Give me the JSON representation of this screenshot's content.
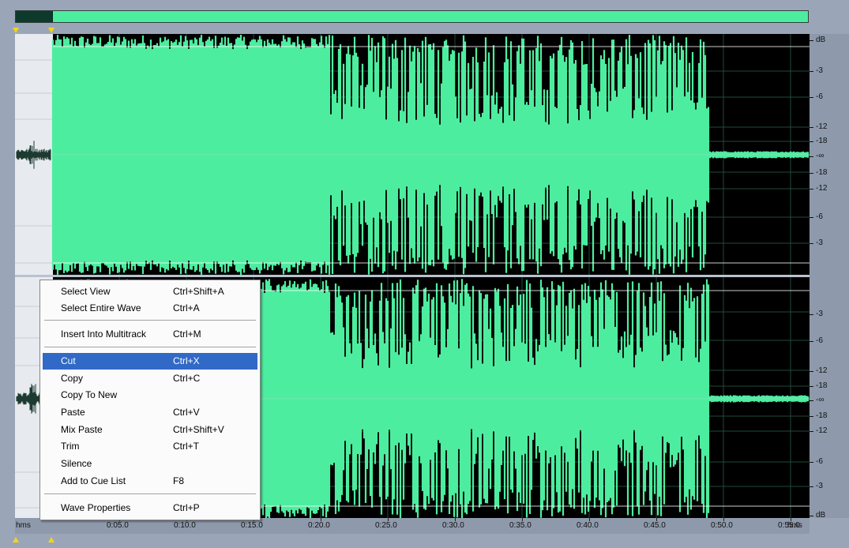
{
  "colors": {
    "waveform": "#4ded9f",
    "background": "#000000",
    "ruler": "#8e9aac",
    "highlight": "#3169c6",
    "marker": "#f2d51c"
  },
  "db_ruler": {
    "unit": "dB",
    "top_channel": [
      "dB",
      "-3",
      "-6",
      "-12",
      "-18",
      "-∞",
      "-18",
      "-12",
      "-6",
      "-3"
    ],
    "bottom_channel": [
      "-3",
      "-6",
      "-12",
      "-18",
      "-∞",
      "-18",
      "-12",
      "-6",
      "-3",
      "dB"
    ]
  },
  "time_ruler": {
    "unit_left": "hms",
    "unit_right": "hms",
    "ticks": [
      "0:05.0",
      "0:10.0",
      "0:15.0",
      "0:20.0",
      "0:25.0",
      "0:30.0",
      "0:35.0",
      "0:40.0",
      "0:45.0",
      "0:50.0",
      "0:55.0"
    ]
  },
  "context_menu": {
    "items": [
      {
        "label": "Select View",
        "shortcut": "Ctrl+Shift+A"
      },
      {
        "label": "Select Entire Wave",
        "shortcut": "Ctrl+A"
      },
      {
        "label": "Insert Into Multitrack",
        "shortcut": "Ctrl+M"
      },
      {
        "label": "Cut",
        "shortcut": "Ctrl+X",
        "highlighted": true
      },
      {
        "label": "Copy",
        "shortcut": "Ctrl+C"
      },
      {
        "label": "Copy To New",
        "shortcut": ""
      },
      {
        "label": "Paste",
        "shortcut": "Ctrl+V"
      },
      {
        "label": "Mix Paste",
        "shortcut": "Ctrl+Shift+V"
      },
      {
        "label": "Trim",
        "shortcut": "Ctrl+T"
      },
      {
        "label": "Silence",
        "shortcut": ""
      },
      {
        "label": "Add to Cue List",
        "shortcut": "F8"
      },
      {
        "label": "Wave Properties",
        "shortcut": "Ctrl+P"
      }
    ]
  }
}
